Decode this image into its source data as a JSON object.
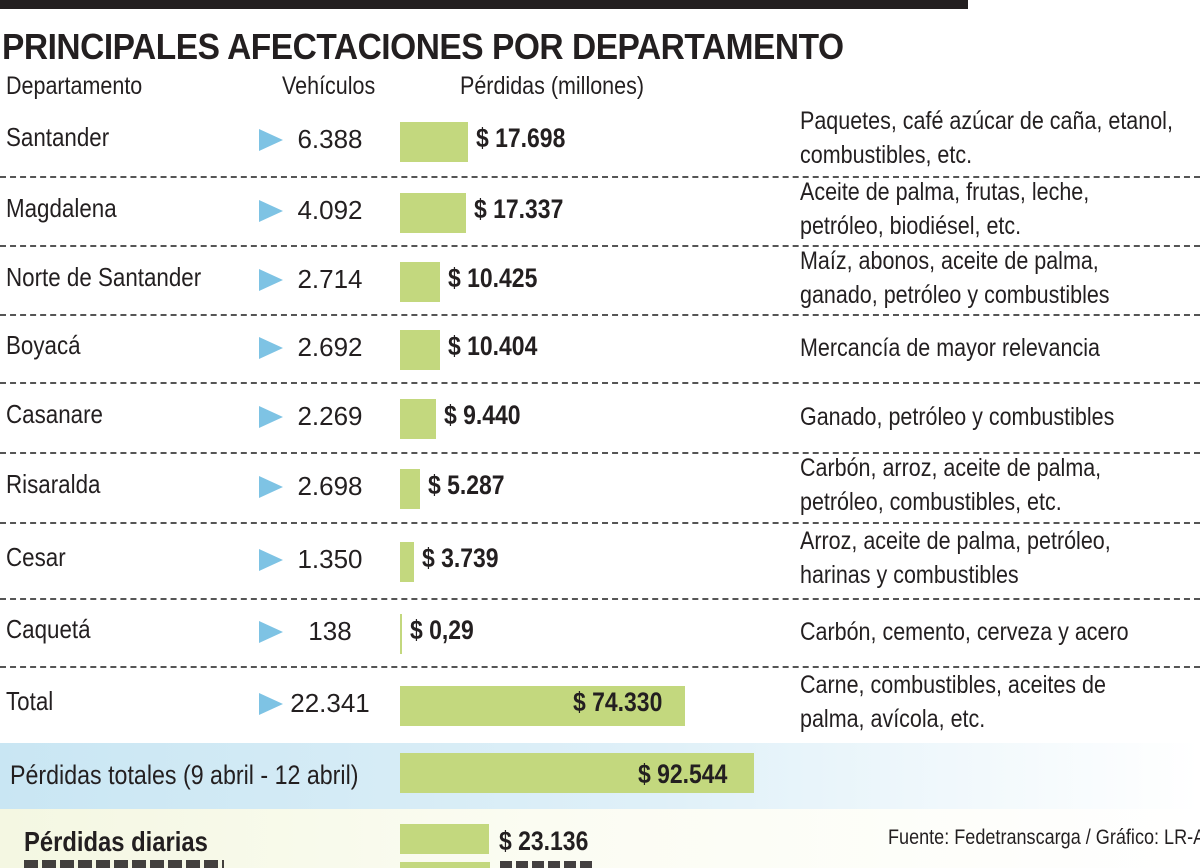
{
  "title": "PRINCIPALES AFECTACIONES POR DEPARTAMENTO",
  "headers": {
    "departamento": "Departamento",
    "vehiculos": "Vehículos",
    "perdidas": "Pérdidas (millones)"
  },
  "colors": {
    "bar": "#c3d87e",
    "arrow": "#7ec3e4",
    "band": "#c9e6f3"
  },
  "icon": "play-triangle-icon",
  "rows": [
    {
      "departamento": "Santander",
      "vehiculos": "6.388",
      "perdidas": "$ 17.698",
      "productos": [
        "Paquetes, café azúcar de caña, etanol,",
        "combustibles, etc."
      ]
    },
    {
      "departamento": "Magdalena",
      "vehiculos": "4.092",
      "perdidas": "$ 17.337",
      "productos": [
        "Aceite de palma, frutas, leche,",
        "petróleo, biodiésel, etc."
      ]
    },
    {
      "departamento": "Norte de Santander",
      "vehiculos": "2.714",
      "perdidas": "$ 10.425",
      "productos": [
        "Maíz, abonos, aceite de palma,",
        "ganado, petróleo y combustibles"
      ]
    },
    {
      "departamento": "Boyacá",
      "vehiculos": "2.692",
      "perdidas": "$ 10.404",
      "productos": [
        "Mercancía de mayor relevancia"
      ]
    },
    {
      "departamento": "Casanare",
      "vehiculos": "2.269",
      "perdidas": "$ 9.440",
      "productos": [
        "Ganado, petróleo y combustibles"
      ]
    },
    {
      "departamento": "Risaralda",
      "vehiculos": "2.698",
      "perdidas": "$ 5.287",
      "productos": [
        "Carbón, arroz, aceite de palma,",
        "petróleo, combustibles, etc."
      ]
    },
    {
      "departamento": "Cesar",
      "vehiculos": "1.350",
      "perdidas": "$ 3.739",
      "productos": [
        "Arroz, aceite de palma, petróleo,",
        "harinas y combustibles"
      ]
    },
    {
      "departamento": "Caquetá",
      "vehiculos": "138",
      "perdidas": "$ 0,29",
      "productos": [
        "Carbón, cemento, cerveza y acero"
      ]
    },
    {
      "departamento": "Total",
      "vehiculos": "22.341",
      "perdidas": "$ 74.330",
      "productos": [
        "Carne, combustibles, aceites de",
        "palma, avícola, etc."
      ]
    }
  ],
  "perdidas_totales": {
    "label": "Pérdidas totales (9 abril - 12 abril)",
    "value": "$ 92.544"
  },
  "perdidas_diarias": {
    "label": "Pérdidas diarias",
    "value": "$ 23.136"
  },
  "source": "Fuente: Fedetranscarga / Gráfico: LR-AA",
  "chart_data": {
    "type": "bar",
    "title": "PRINCIPALES AFECTACIONES POR DEPARTAMENTO",
    "xlabel": "Departamento",
    "ylabel": "Pérdidas (millones)",
    "categories": [
      "Santander",
      "Magdalena",
      "Norte de Santander",
      "Boyacá",
      "Casanare",
      "Risaralda",
      "Cesar",
      "Caquetá",
      "Total",
      "Pérdidas totales (9 abril - 12 abril)",
      "Pérdidas diarias"
    ],
    "values": [
      17698,
      17337,
      10425,
      10404,
      9440,
      5287,
      3739,
      0.29,
      74330,
      92544,
      23136
    ],
    "vehiculos": [
      6388,
      4092,
      2714,
      2692,
      2269,
      2698,
      1350,
      138,
      22341
    ],
    "orientation": "horizontal",
    "grid": false,
    "legend": "none"
  }
}
